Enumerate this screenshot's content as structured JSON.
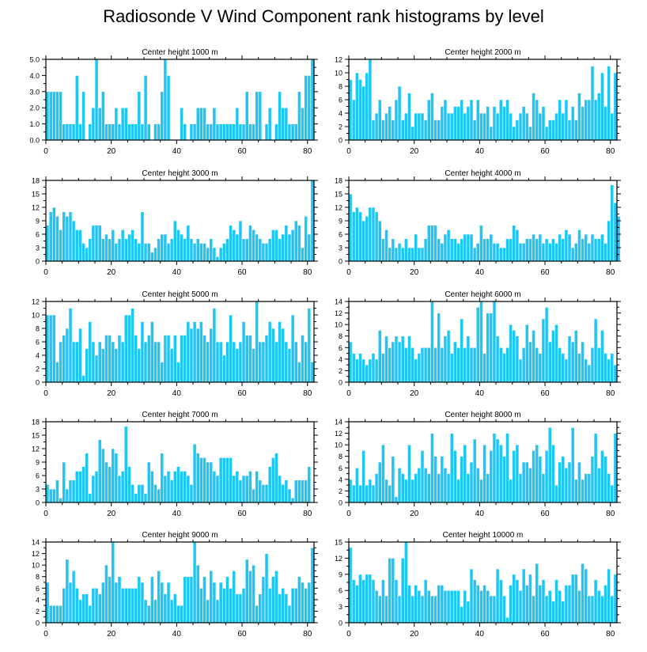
{
  "figure": {
    "title": "Radiosonde V Wind Component rank histograms by level",
    "bar_color": "#1ec6f5",
    "bar_edge": "#ffffff",
    "frame_color": "#000000"
  },
  "chart_data": [
    {
      "type": "bar",
      "title": "Center height 1000 m",
      "xlim": [
        0,
        82
      ],
      "ylim": [
        0,
        5
      ],
      "xticks": [
        0,
        20,
        40,
        60,
        80
      ],
      "yticks": [
        0,
        1,
        2,
        3,
        4,
        5
      ],
      "ytick_labels": [
        "0.0",
        "1.0",
        "2.0",
        "3.0",
        "4.0",
        "5.0"
      ],
      "values": [
        3,
        3,
        3,
        3,
        3,
        1,
        1,
        1,
        1,
        4,
        1,
        3,
        0,
        1,
        2,
        5,
        2,
        3,
        1,
        1,
        1,
        2,
        1,
        2,
        2,
        1,
        1,
        1,
        3,
        1,
        4,
        1,
        0,
        1,
        1,
        3,
        5,
        4,
        0,
        0,
        0,
        2,
        1,
        0,
        1,
        1,
        2,
        2,
        2,
        1,
        1,
        2,
        1,
        1,
        1,
        1,
        1,
        1,
        2,
        1,
        1,
        3,
        1,
        1,
        3,
        3,
        0,
        1,
        2,
        0,
        1,
        3,
        2,
        2,
        1,
        1,
        1,
        3,
        2,
        4,
        4,
        5
      ]
    },
    {
      "type": "bar",
      "title": "Center height 2000 m",
      "xlim": [
        0,
        82
      ],
      "ylim": [
        0,
        12
      ],
      "xticks": [
        0,
        20,
        40,
        60,
        80
      ],
      "yticks": [
        0,
        2,
        4,
        6,
        8,
        10,
        12
      ],
      "ytick_labels": [
        "0",
        "2",
        "4",
        "6",
        "8",
        "10",
        "12"
      ],
      "values": [
        9,
        6,
        10,
        9,
        8,
        10,
        12,
        3,
        4,
        6,
        3,
        4,
        5,
        3,
        6,
        8,
        3,
        4,
        7,
        2,
        4,
        4,
        4,
        3,
        6,
        7,
        3,
        3,
        5,
        6,
        4,
        4,
        5,
        5,
        6,
        4,
        5,
        6,
        3,
        6,
        4,
        4,
        5,
        2,
        5,
        4,
        6,
        5,
        6,
        4,
        2,
        3,
        4,
        5,
        4,
        2,
        7,
        6,
        4,
        5,
        2,
        3,
        3,
        4,
        6,
        4,
        6,
        3,
        5,
        3,
        7,
        5,
        6,
        6,
        11,
        6,
        7,
        10,
        5,
        11,
        4,
        10
      ]
    },
    {
      "type": "bar",
      "title": "Center height 3000 m",
      "xlim": [
        0,
        82
      ],
      "ylim": [
        0,
        18
      ],
      "xticks": [
        0,
        20,
        40,
        60,
        80
      ],
      "yticks": [
        0,
        3,
        6,
        9,
        12,
        15,
        18
      ],
      "ytick_labels": [
        "0",
        "3",
        "6",
        "9",
        "12",
        "15",
        "18"
      ],
      "values": [
        8,
        11,
        12,
        10,
        7,
        11,
        10,
        11,
        9,
        7,
        7,
        4,
        3,
        5,
        8,
        8,
        8,
        5,
        6,
        5,
        7,
        4,
        5,
        7,
        5,
        6,
        7,
        5,
        4,
        11,
        4,
        4,
        2,
        3,
        5,
        6,
        6,
        4,
        5,
        9,
        7,
        6,
        5,
        8,
        5,
        4,
        5,
        4,
        4,
        3,
        5,
        3,
        1,
        3,
        4,
        5,
        8,
        7,
        6,
        9,
        5,
        5,
        8,
        7,
        6,
        5,
        4,
        4,
        5,
        7,
        7,
        5,
        6,
        8,
        6,
        7,
        9,
        8,
        3,
        10,
        6,
        18
      ]
    },
    {
      "type": "bar",
      "title": "Center height 4000 m",
      "xlim": [
        0,
        82
      ],
      "ylim": [
        0,
        18
      ],
      "xticks": [
        0,
        20,
        40,
        60,
        80
      ],
      "yticks": [
        0,
        3,
        6,
        9,
        12,
        15,
        18
      ],
      "ytick_labels": [
        "0",
        "3",
        "6",
        "9",
        "12",
        "15",
        "18"
      ],
      "values": [
        15,
        11,
        12,
        11,
        9,
        10,
        12,
        12,
        11,
        9,
        5,
        7,
        3,
        5,
        3,
        4,
        3,
        5,
        3,
        3,
        6,
        3,
        3,
        5,
        8,
        8,
        8,
        5,
        4,
        6,
        7,
        5,
        5,
        4,
        5,
        6,
        6,
        6,
        3,
        4,
        8,
        5,
        5,
        6,
        4,
        4,
        3,
        3,
        5,
        5,
        8,
        7,
        4,
        4,
        5,
        5,
        6,
        5,
        6,
        4,
        5,
        4,
        5,
        4,
        6,
        5,
        7,
        6,
        3,
        4,
        7,
        5,
        6,
        4,
        6,
        5,
        5,
        6,
        4,
        9,
        17,
        13,
        10
      ]
    },
    {
      "type": "bar",
      "title": "Center height 5000 m",
      "xlim": [
        0,
        82
      ],
      "ylim": [
        0,
        12
      ],
      "xticks": [
        0,
        20,
        40,
        60,
        80
      ],
      "yticks": [
        0,
        2,
        4,
        6,
        8,
        10,
        12
      ],
      "ytick_labels": [
        "0",
        "2",
        "4",
        "6",
        "8",
        "10",
        "12"
      ],
      "values": [
        10,
        10,
        10,
        3,
        6,
        7,
        8,
        11,
        6,
        6,
        8,
        1,
        5,
        9,
        6,
        4,
        6,
        5,
        7,
        7,
        6,
        5,
        7,
        6,
        10,
        10,
        11,
        7,
        5,
        9,
        6,
        7,
        9,
        6,
        6,
        3,
        7,
        7,
        5,
        7,
        3,
        7,
        7,
        9,
        8,
        9,
        8,
        9,
        7,
        6,
        8,
        11,
        6,
        6,
        4,
        6,
        10,
        6,
        5,
        6,
        9,
        7,
        7,
        5,
        12,
        6,
        6,
        7,
        9,
        8,
        6,
        9,
        8,
        6,
        5,
        10,
        6,
        3,
        7,
        6,
        11,
        3
      ]
    },
    {
      "type": "bar",
      "title": "Center height 6000 m",
      "xlim": [
        0,
        82
      ],
      "ylim": [
        0,
        14
      ],
      "xticks": [
        0,
        20,
        40,
        60,
        80
      ],
      "yticks": [
        0,
        2,
        4,
        6,
        8,
        10,
        12,
        14
      ],
      "ytick_labels": [
        "0",
        "2",
        "4",
        "6",
        "8",
        "10",
        "12",
        "14"
      ],
      "values": [
        7,
        5,
        4,
        5,
        4,
        3,
        4,
        5,
        4,
        9,
        5,
        8,
        6,
        7,
        8,
        7,
        8,
        6,
        8,
        6,
        4,
        5,
        6,
        6,
        6,
        14,
        6,
        12,
        6,
        8,
        9,
        5,
        7,
        6,
        11,
        6,
        8,
        6,
        6,
        13,
        14,
        5,
        12,
        12,
        14,
        8,
        6,
        5,
        6,
        10,
        9,
        8,
        4,
        6,
        10,
        7,
        9,
        6,
        5,
        11,
        13,
        7,
        9,
        10,
        6,
        5,
        4,
        8,
        7,
        9,
        5,
        7,
        4,
        3,
        6,
        11,
        6,
        9,
        5,
        4,
        5,
        3
      ]
    },
    {
      "type": "bar",
      "title": "Center height 7000 m",
      "xlim": [
        0,
        82
      ],
      "ylim": [
        0,
        18
      ],
      "xticks": [
        0,
        20,
        40,
        60,
        80
      ],
      "yticks": [
        0,
        3,
        6,
        9,
        12,
        15,
        18
      ],
      "ytick_labels": [
        "0",
        "3",
        "6",
        "9",
        "12",
        "15",
        "18"
      ],
      "values": [
        4,
        3,
        3,
        5,
        1,
        9,
        3,
        5,
        5,
        7,
        7,
        8,
        11,
        2,
        6,
        7,
        14,
        12,
        9,
        8,
        12,
        11,
        6,
        7,
        17,
        8,
        4,
        2,
        4,
        4,
        2,
        9,
        7,
        4,
        3,
        11,
        6,
        7,
        5,
        7,
        8,
        7,
        7,
        6,
        4,
        13,
        11,
        10,
        10,
        9,
        9,
        7,
        6,
        10,
        10,
        10,
        10,
        6,
        7,
        5,
        6,
        6,
        7,
        3,
        7,
        5,
        4,
        4,
        8,
        10,
        11,
        6,
        4,
        5,
        3,
        1,
        5,
        5,
        5,
        5,
        8
      ]
    },
    {
      "type": "bar",
      "title": "Center height 8000 m",
      "xlim": [
        0,
        82
      ],
      "ylim": [
        0,
        14
      ],
      "xticks": [
        0,
        20,
        40,
        60,
        80
      ],
      "yticks": [
        0,
        2,
        4,
        6,
        8,
        10,
        12,
        14
      ],
      "ytick_labels": [
        "0",
        "2",
        "4",
        "6",
        "8",
        "10",
        "12",
        "14"
      ],
      "values": [
        4,
        3,
        6,
        3,
        9,
        3,
        4,
        3,
        5,
        7,
        10,
        4,
        3,
        8,
        1,
        6,
        5,
        4,
        10,
        4,
        5,
        6,
        9,
        6,
        5,
        12,
        8,
        5,
        8,
        6,
        5,
        12,
        9,
        4,
        8,
        10,
        5,
        7,
        11,
        6,
        4,
        10,
        5,
        9,
        12,
        11,
        10,
        8,
        12,
        4,
        9,
        10,
        5,
        7,
        7,
        6,
        9,
        10,
        8,
        5,
        9,
        13,
        10,
        3,
        7,
        8,
        6,
        7,
        13,
        4,
        7,
        4,
        5,
        5,
        8,
        12,
        6,
        9,
        8,
        5,
        3,
        12
      ]
    },
    {
      "type": "bar",
      "title": "Center height 9000 m",
      "xlim": [
        0,
        82
      ],
      "ylim": [
        0,
        14
      ],
      "xticks": [
        0,
        20,
        40,
        60,
        80
      ],
      "yticks": [
        0,
        2,
        4,
        6,
        8,
        10,
        12,
        14
      ],
      "ytick_labels": [
        "0",
        "2",
        "4",
        "6",
        "8",
        "10",
        "12",
        "14"
      ],
      "values": [
        7,
        3,
        3,
        3,
        3,
        6,
        11,
        7,
        9,
        6,
        4,
        5,
        5,
        3,
        6,
        6,
        5,
        7,
        10,
        8,
        14,
        7,
        8,
        6,
        6,
        6,
        6,
        6,
        8,
        7,
        4,
        3,
        8,
        4,
        9,
        7,
        5,
        7,
        4,
        5,
        3,
        3,
        8,
        8,
        8,
        14,
        10,
        6,
        8,
        4,
        9,
        7,
        4,
        7,
        6,
        8,
        6,
        9,
        5,
        5,
        6,
        11,
        9,
        10,
        3,
        5,
        8,
        12,
        6,
        8,
        9,
        5,
        6,
        5,
        3,
        6,
        6,
        8,
        7,
        6,
        7,
        13
      ]
    },
    {
      "type": "bar",
      "title": "Center height 10000 m",
      "xlim": [
        0,
        82
      ],
      "ylim": [
        0,
        15
      ],
      "xticks": [
        0,
        20,
        40,
        60,
        80
      ],
      "yticks": [
        0,
        3,
        6,
        9,
        12,
        15
      ],
      "ytick_labels": [
        "0",
        "3",
        "6",
        "9",
        "12",
        "15"
      ],
      "values": [
        14,
        8,
        7,
        9,
        8,
        9,
        9,
        8,
        6,
        5,
        8,
        5,
        12,
        12,
        8,
        5,
        12,
        15,
        7,
        5,
        7,
        6,
        5,
        8,
        6,
        5,
        5,
        7,
        7,
        6,
        6,
        6,
        6,
        6,
        3,
        6,
        4,
        10,
        8,
        7,
        6,
        7,
        6,
        5,
        5,
        10,
        8,
        5,
        1,
        7,
        9,
        8,
        6,
        10,
        7,
        9,
        5,
        11,
        7,
        8,
        5,
        6,
        4,
        8,
        6,
        4,
        7,
        7,
        9,
        9,
        6,
        11,
        10,
        5,
        5,
        8,
        6,
        5,
        7,
        10,
        5,
        9
      ]
    }
  ]
}
